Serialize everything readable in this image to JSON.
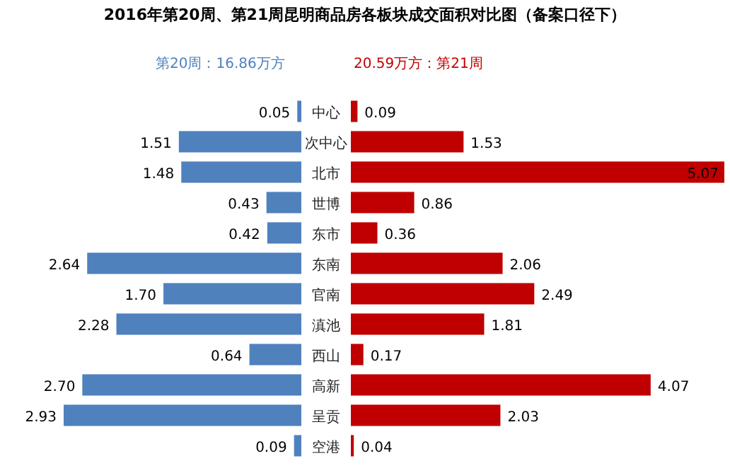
{
  "chart_data": [
    {
      "type": "bar",
      "orientation": "horizontal",
      "title": "2016年第20周、第21周昆明商品房各板块成交面积对比图（备案口径下）",
      "categories": [
        "中心",
        "次中心",
        "北市",
        "世博",
        "东市",
        "东南",
        "官南",
        "滇池",
        "西山",
        "高新",
        "呈贡",
        "空港"
      ],
      "series": [
        {
          "name": "第20周：16.86万方",
          "color": "#4f81bd",
          "values": [
            0.05,
            1.51,
            1.48,
            0.43,
            0.42,
            2.64,
            1.7,
            2.28,
            0.64,
            2.7,
            2.93,
            0.09
          ],
          "value_labels": [
            "0.05",
            "1.51",
            "1.48",
            "0.43",
            "0.42",
            "2.64",
            "1.70",
            "2.28",
            "0.64",
            "2.70",
            "2.93",
            "0.09"
          ]
        }
      ]
    },
    {
      "type": "bar",
      "orientation": "horizontal",
      "categories": [
        null,
        null,
        null,
        null,
        null,
        null,
        null,
        null,
        null,
        null,
        null,
        null
      ],
      "series": [
        {
          "name": "20.59万方：第21周",
          "color": "#c00000",
          "values": [
            0.09,
            1.53,
            5.07,
            0.86,
            0.36,
            2.06,
            2.49,
            1.81,
            0.17,
            4.07,
            2.03,
            0.04
          ],
          "value_labels": [
            "0.09",
            "1.53",
            "5.07",
            "0.86",
            "0.36",
            "2.06",
            "2.49",
            "1.81",
            "0.17",
            "4.07",
            "2.03",
            "0.04"
          ]
        }
      ]
    }
  ]
}
